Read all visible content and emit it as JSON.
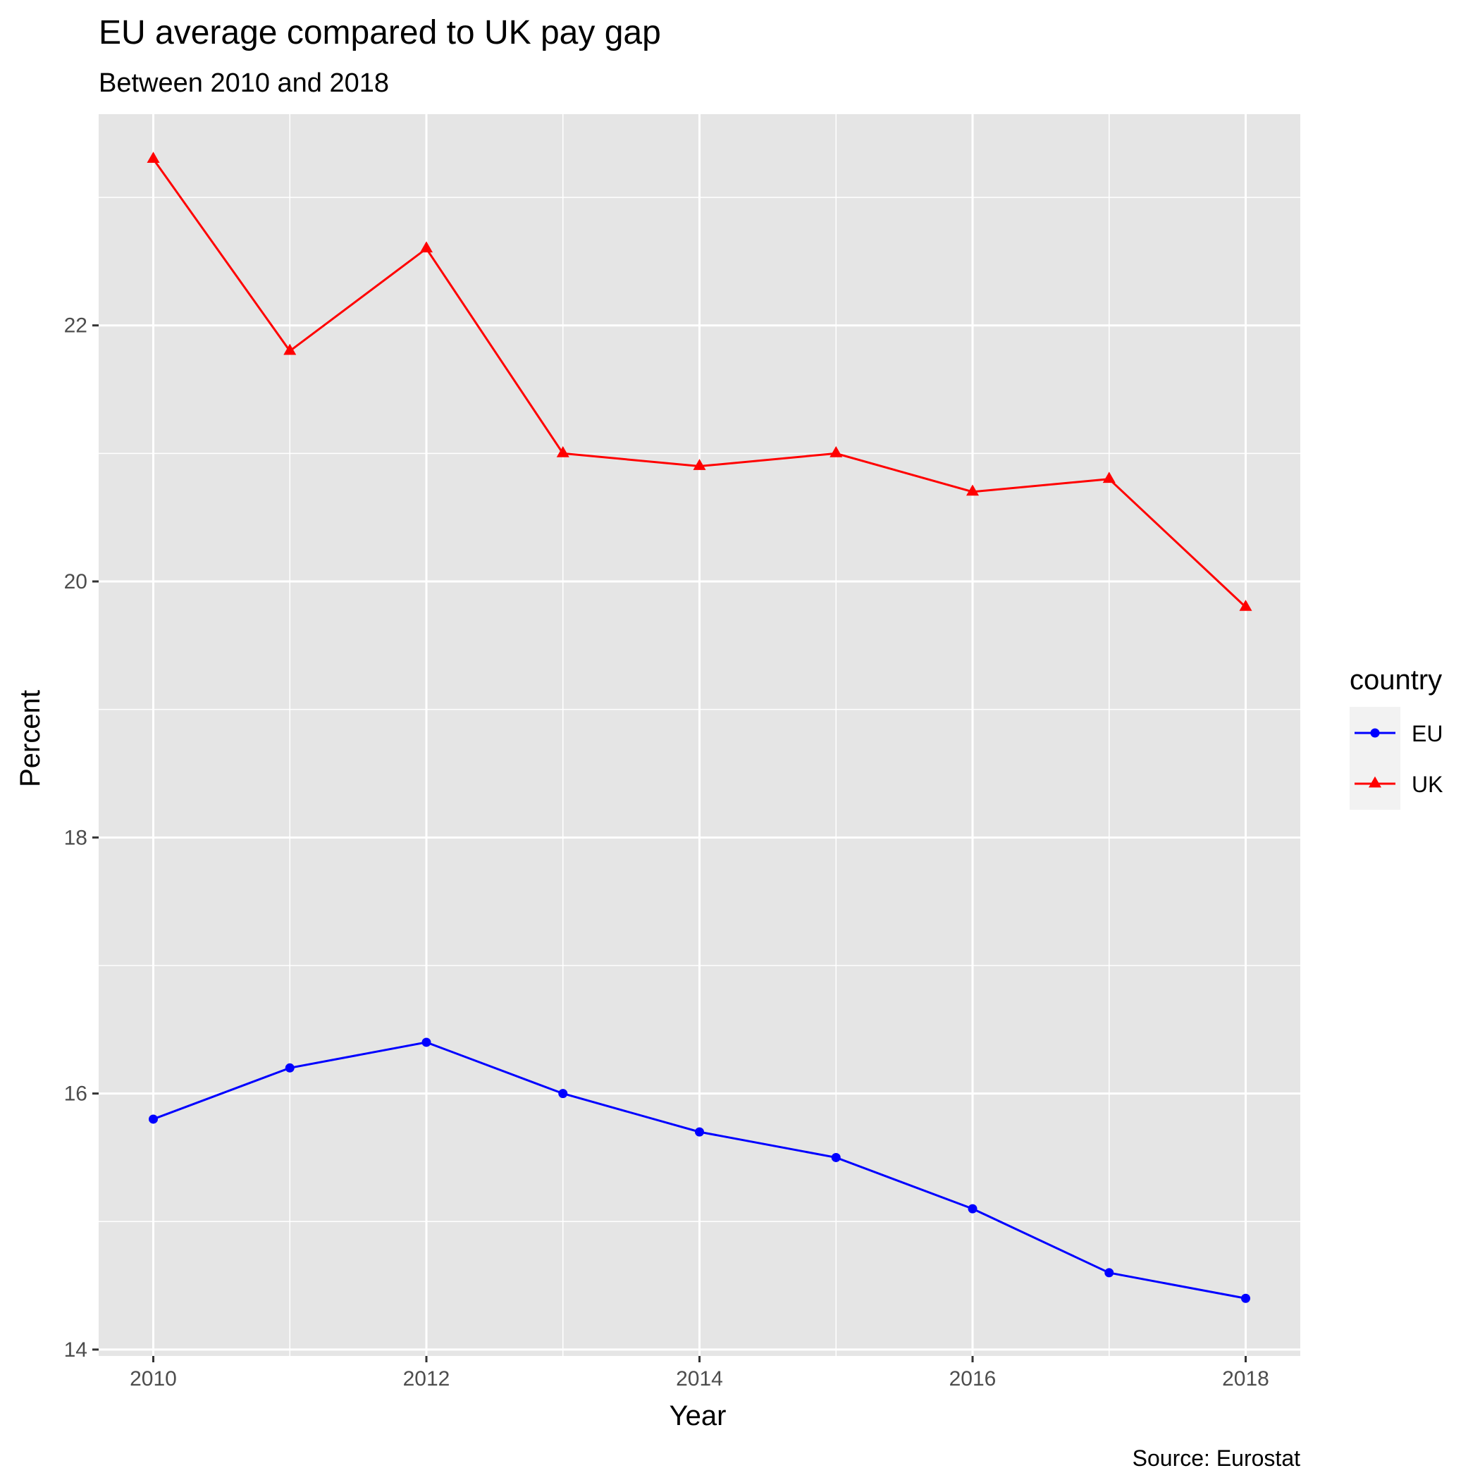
{
  "chart_data": {
    "type": "line",
    "title": "EU average compared to UK pay gap",
    "subtitle": "Between 2010 and 2018",
    "xlabel": "Year",
    "ylabel": "Percent",
    "caption": "Source: Eurostat",
    "x": [
      2010,
      2011,
      2012,
      2013,
      2014,
      2015,
      2016,
      2017,
      2018
    ],
    "xticks": [
      "2010",
      "2012",
      "2014",
      "2016",
      "2018"
    ],
    "yticks": [
      "14",
      "16",
      "18",
      "20",
      "22"
    ],
    "xlim": [
      2009.6,
      2018.4
    ],
    "ylim": [
      13.95,
      23.65
    ],
    "grid": true,
    "legend": {
      "title": "country",
      "position": "right"
    },
    "series": [
      {
        "name": "EU",
        "color": "#0000ff",
        "marker": "circle",
        "values": [
          15.8,
          16.2,
          16.4,
          16.0,
          15.7,
          15.5,
          15.1,
          14.6,
          14.4
        ]
      },
      {
        "name": "UK",
        "color": "#ff0000",
        "marker": "triangle",
        "values": [
          23.3,
          21.8,
          22.6,
          21.0,
          20.9,
          21.0,
          20.7,
          20.8,
          19.8
        ]
      }
    ],
    "panel_background": "#e5e5e5",
    "grid_color": "#ffffff"
  }
}
